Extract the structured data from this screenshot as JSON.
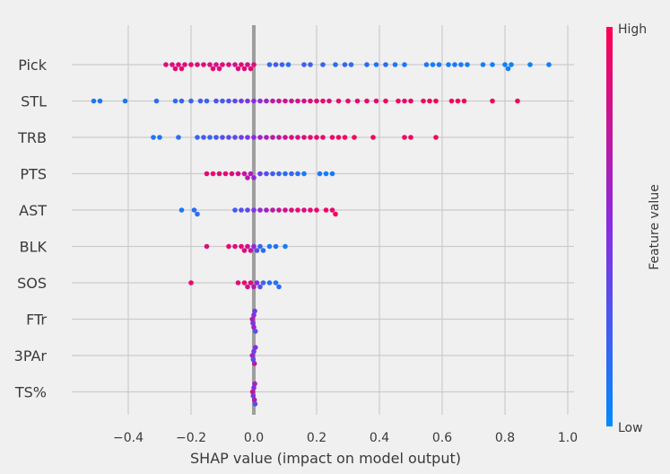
{
  "chart_data": {
    "type": "scatter",
    "title": "",
    "xlabel": "SHAP value (impact on model output)",
    "ylabel": "",
    "xlim": [
      -0.58,
      1.02
    ],
    "xticks": [
      -0.4,
      -0.2,
      0.0,
      0.2,
      0.4,
      0.6,
      0.8,
      1.0
    ],
    "xtick_labels": [
      "−0.4",
      "−0.2",
      "0.0",
      "0.2",
      "0.4",
      "0.6",
      "0.8",
      "1.0"
    ],
    "features": [
      "Pick",
      "STL",
      "TRB",
      "PTS",
      "AST",
      "BLK",
      "SOS",
      "FTr",
      "3PAr",
      "TS%"
    ],
    "grid": true,
    "colorbar": {
      "label": "Feature value",
      "high_label": "High",
      "low_label": "Low",
      "low_color": "#008bfb",
      "high_color": "#ff0052"
    },
    "series": [
      {
        "feature": "Pick",
        "points": [
          [
            -0.28,
            0.85
          ],
          [
            -0.26,
            0.85
          ],
          [
            -0.25,
            0.9
          ],
          [
            -0.24,
            0.85
          ],
          [
            -0.23,
            0.9
          ],
          [
            -0.22,
            0.85
          ],
          [
            -0.2,
            0.9
          ],
          [
            -0.18,
            0.85
          ],
          [
            -0.16,
            0.9
          ],
          [
            -0.14,
            0.85
          ],
          [
            -0.13,
            0.9
          ],
          [
            -0.12,
            0.8
          ],
          [
            -0.11,
            0.85
          ],
          [
            -0.1,
            0.9
          ],
          [
            -0.08,
            0.85
          ],
          [
            -0.06,
            0.8
          ],
          [
            -0.05,
            0.85
          ],
          [
            -0.04,
            0.9
          ],
          [
            -0.03,
            0.85
          ],
          [
            -0.02,
            0.8
          ],
          [
            -0.01,
            0.9
          ],
          [
            0.0,
            0.85
          ],
          [
            0.05,
            0.2
          ],
          [
            0.07,
            0.25
          ],
          [
            0.09,
            0.2
          ],
          [
            0.11,
            0.15
          ],
          [
            0.16,
            0.25
          ],
          [
            0.18,
            0.2
          ],
          [
            0.22,
            0.2
          ],
          [
            0.26,
            0.15
          ],
          [
            0.29,
            0.2
          ],
          [
            0.31,
            0.15
          ],
          [
            0.36,
            0.15
          ],
          [
            0.39,
            0.1
          ],
          [
            0.42,
            0.15
          ],
          [
            0.45,
            0.1
          ],
          [
            0.48,
            0.1
          ],
          [
            0.55,
            0.1
          ],
          [
            0.57,
            0.05
          ],
          [
            0.59,
            0.1
          ],
          [
            0.62,
            0.05
          ],
          [
            0.64,
            0.1
          ],
          [
            0.66,
            0.1
          ],
          [
            0.68,
            0.05
          ],
          [
            0.73,
            0.05
          ],
          [
            0.76,
            0.05
          ],
          [
            0.8,
            0.05
          ],
          [
            0.81,
            0.05
          ],
          [
            0.82,
            0.05
          ],
          [
            0.88,
            0.05
          ],
          [
            0.94,
            0.05
          ]
        ]
      },
      {
        "feature": "STL",
        "points": [
          [
            -0.51,
            0.1
          ],
          [
            -0.49,
            0.1
          ],
          [
            -0.41,
            0.1
          ],
          [
            -0.31,
            0.15
          ],
          [
            -0.25,
            0.15
          ],
          [
            -0.23,
            0.2
          ],
          [
            -0.2,
            0.2
          ],
          [
            -0.17,
            0.25
          ],
          [
            -0.15,
            0.2
          ],
          [
            -0.12,
            0.3
          ],
          [
            -0.1,
            0.25
          ],
          [
            -0.08,
            0.3
          ],
          [
            -0.06,
            0.35
          ],
          [
            -0.04,
            0.4
          ],
          [
            -0.02,
            0.45
          ],
          [
            0.0,
            0.5
          ],
          [
            0.02,
            0.55
          ],
          [
            0.04,
            0.6
          ],
          [
            0.06,
            0.7
          ],
          [
            0.08,
            0.75
          ],
          [
            0.1,
            0.8
          ],
          [
            0.12,
            0.75
          ],
          [
            0.14,
            0.8
          ],
          [
            0.16,
            0.8
          ],
          [
            0.18,
            0.85
          ],
          [
            0.2,
            0.85
          ],
          [
            0.22,
            0.9
          ],
          [
            0.24,
            0.85
          ],
          [
            0.27,
            0.9
          ],
          [
            0.3,
            0.9
          ],
          [
            0.33,
            0.9
          ],
          [
            0.36,
            0.9
          ],
          [
            0.39,
            0.9
          ],
          [
            0.42,
            0.95
          ],
          [
            0.46,
            0.95
          ],
          [
            0.48,
            0.9
          ],
          [
            0.5,
            0.95
          ],
          [
            0.54,
            0.95
          ],
          [
            0.56,
            0.95
          ],
          [
            0.58,
            0.95
          ],
          [
            0.63,
            0.95
          ],
          [
            0.65,
            0.95
          ],
          [
            0.67,
            0.95
          ],
          [
            0.76,
            0.95
          ],
          [
            0.84,
            0.95
          ]
        ]
      },
      {
        "feature": "TRB",
        "points": [
          [
            -0.32,
            0.1
          ],
          [
            -0.3,
            0.1
          ],
          [
            -0.24,
            0.15
          ],
          [
            -0.18,
            0.2
          ],
          [
            -0.16,
            0.25
          ],
          [
            -0.14,
            0.2
          ],
          [
            -0.12,
            0.25
          ],
          [
            -0.1,
            0.3
          ],
          [
            -0.08,
            0.35
          ],
          [
            -0.06,
            0.3
          ],
          [
            -0.04,
            0.4
          ],
          [
            -0.02,
            0.45
          ],
          [
            0.0,
            0.5
          ],
          [
            0.02,
            0.6
          ],
          [
            0.04,
            0.65
          ],
          [
            0.06,
            0.7
          ],
          [
            0.08,
            0.75
          ],
          [
            0.1,
            0.8
          ],
          [
            0.12,
            0.85
          ],
          [
            0.14,
            0.8
          ],
          [
            0.16,
            0.85
          ],
          [
            0.18,
            0.9
          ],
          [
            0.2,
            0.9
          ],
          [
            0.22,
            0.9
          ],
          [
            0.25,
            0.9
          ],
          [
            0.27,
            0.95
          ],
          [
            0.29,
            0.95
          ],
          [
            0.32,
            0.95
          ],
          [
            0.38,
            0.95
          ],
          [
            0.48,
            0.95
          ],
          [
            0.5,
            0.95
          ],
          [
            0.58,
            0.95
          ]
        ]
      },
      {
        "feature": "PTS",
        "points": [
          [
            -0.15,
            0.9
          ],
          [
            -0.13,
            0.9
          ],
          [
            -0.11,
            0.85
          ],
          [
            -0.09,
            0.9
          ],
          [
            -0.07,
            0.85
          ],
          [
            -0.05,
            0.8
          ],
          [
            -0.03,
            0.75
          ],
          [
            -0.02,
            0.7
          ],
          [
            -0.01,
            0.65
          ],
          [
            0.0,
            0.55
          ],
          [
            0.02,
            0.4
          ],
          [
            0.04,
            0.3
          ],
          [
            0.06,
            0.25
          ],
          [
            0.08,
            0.2
          ],
          [
            0.1,
            0.15
          ],
          [
            0.12,
            0.2
          ],
          [
            0.14,
            0.15
          ],
          [
            0.16,
            0.1
          ],
          [
            0.21,
            0.1
          ],
          [
            0.23,
            0.05
          ],
          [
            0.25,
            0.1
          ]
        ]
      },
      {
        "feature": "AST",
        "points": [
          [
            -0.23,
            0.1
          ],
          [
            -0.19,
            0.15
          ],
          [
            -0.18,
            0.15
          ],
          [
            -0.06,
            0.25
          ],
          [
            -0.04,
            0.3
          ],
          [
            -0.02,
            0.35
          ],
          [
            0.0,
            0.45
          ],
          [
            0.02,
            0.55
          ],
          [
            0.04,
            0.6
          ],
          [
            0.06,
            0.7
          ],
          [
            0.08,
            0.75
          ],
          [
            0.1,
            0.8
          ],
          [
            0.12,
            0.85
          ],
          [
            0.14,
            0.9
          ],
          [
            0.16,
            0.85
          ],
          [
            0.18,
            0.9
          ],
          [
            0.2,
            0.9
          ],
          [
            0.23,
            0.95
          ],
          [
            0.25,
            0.9
          ],
          [
            0.26,
            0.95
          ]
        ]
      },
      {
        "feature": "BLK",
        "points": [
          [
            -0.15,
            0.85
          ],
          [
            -0.08,
            0.9
          ],
          [
            -0.06,
            0.85
          ],
          [
            -0.04,
            0.9
          ],
          [
            -0.03,
            0.85
          ],
          [
            -0.02,
            0.8
          ],
          [
            -0.01,
            0.75
          ],
          [
            0.0,
            0.5
          ],
          [
            0.01,
            0.3
          ],
          [
            0.02,
            0.2
          ],
          [
            0.03,
            0.15
          ],
          [
            0.05,
            0.1
          ],
          [
            0.07,
            0.15
          ],
          [
            0.1,
            0.05
          ]
        ]
      },
      {
        "feature": "SOS",
        "points": [
          [
            -0.2,
            0.9
          ],
          [
            -0.05,
            0.85
          ],
          [
            -0.03,
            0.9
          ],
          [
            -0.02,
            0.8
          ],
          [
            -0.01,
            0.85
          ],
          [
            0.0,
            0.7
          ],
          [
            0.01,
            0.5
          ],
          [
            0.02,
            0.3
          ],
          [
            0.03,
            0.2
          ],
          [
            0.05,
            0.15
          ],
          [
            0.07,
            0.1
          ],
          [
            0.08,
            0.15
          ]
        ]
      },
      {
        "feature": "FTr",
        "points": [
          [
            -0.005,
            0.7
          ],
          [
            0.0,
            0.5
          ],
          [
            0.005,
            0.3
          ],
          [
            0.0,
            0.6
          ],
          [
            0.003,
            0.4
          ],
          [
            -0.003,
            0.45
          ]
        ]
      },
      {
        "feature": "3PAr",
        "points": [
          [
            -0.005,
            0.6
          ],
          [
            0.0,
            0.4
          ],
          [
            0.005,
            0.5
          ],
          [
            0.002,
            0.7
          ],
          [
            -0.002,
            0.3
          ]
        ]
      },
      {
        "feature": "TS%",
        "points": [
          [
            -0.004,
            0.8
          ],
          [
            0.0,
            0.5
          ],
          [
            0.004,
            0.3
          ],
          [
            0.002,
            0.7
          ],
          [
            -0.002,
            0.4
          ],
          [
            0.003,
            0.6
          ]
        ]
      }
    ]
  }
}
